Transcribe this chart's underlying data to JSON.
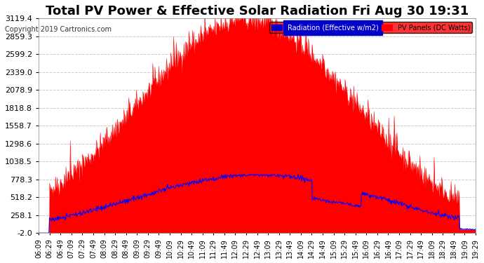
{
  "title": "Total PV Power & Effective Solar Radiation Fri Aug 30 19:31",
  "copyright": "Copyright 2019 Cartronics.com",
  "legend_radiation": "Radiation (Effective w/m2)",
  "legend_pv": "PV Panels (DC Watts)",
  "yticks": [
    -2.0,
    258.1,
    518.2,
    778.3,
    1038.5,
    1298.6,
    1558.7,
    1818.8,
    2078.9,
    2339.0,
    2599.2,
    2859.3,
    3119.4
  ],
  "ymin": -2.0,
  "ymax": 3119.4,
  "background_color": "#ffffff",
  "plot_background": "#ffffff",
  "grid_color": "#cccccc",
  "title_color": "#000000",
  "pv_fill_color": "#ff0000",
  "radiation_line_color": "#0000ff",
  "title_fontsize": 13,
  "xlabel_fontsize": 7,
  "ylabel_fontsize": 8
}
